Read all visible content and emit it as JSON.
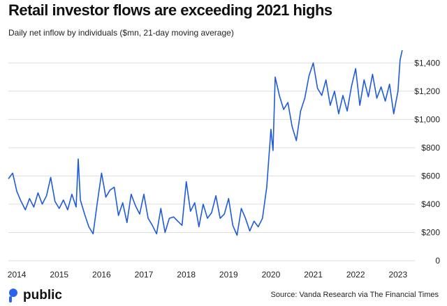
{
  "header": {
    "title": "Retail investor flows are exceeding 2021 highs",
    "subtitle": "Daily net inflow by individuals ($mn, 21-day moving average)"
  },
  "footer": {
    "logo_text": "public",
    "source": "Source: Vanda Research via The Financial Times"
  },
  "colors": {
    "line": "#1f5bd8",
    "grid": "#dddddd",
    "logo_accent": "#2b63ee"
  },
  "chart_data": {
    "type": "line",
    "title": "Retail investor flows are exceeding 2021 highs",
    "subtitle": "Daily net inflow by individuals ($mn, 21-day moving average)",
    "xlabel": "",
    "ylabel": "",
    "x_ticks": [
      "2014",
      "2015",
      "2016",
      "2017",
      "2018",
      "2019",
      "2020",
      "2021",
      "2022",
      "2023"
    ],
    "y_ticks": [
      {
        "value": 0,
        "label": "0"
      },
      {
        "value": 200,
        "label": "$200"
      },
      {
        "value": 400,
        "label": "$400"
      },
      {
        "value": 600,
        "label": "$600"
      },
      {
        "value": 800,
        "label": "$800"
      },
      {
        "value": 1000,
        "label": "$1,000"
      },
      {
        "value": 1200,
        "label": "$1,200"
      },
      {
        "value": 1400,
        "label": "$1,400"
      }
    ],
    "xlim": [
      2013.8,
      2023.3
    ],
    "ylim": [
      0,
      1500
    ],
    "y_axis_position": "right",
    "grid": "horizontal",
    "legend": "none",
    "series": [
      {
        "values": [
          [
            2013.8,
            580
          ],
          [
            2013.9,
            620
          ],
          [
            2014.0,
            490
          ],
          [
            2014.1,
            420
          ],
          [
            2014.2,
            360
          ],
          [
            2014.3,
            440
          ],
          [
            2014.4,
            380
          ],
          [
            2014.5,
            480
          ],
          [
            2014.6,
            400
          ],
          [
            2014.7,
            460
          ],
          [
            2014.8,
            590
          ],
          [
            2014.9,
            420
          ],
          [
            2015.0,
            370
          ],
          [
            2015.1,
            430
          ],
          [
            2015.2,
            360
          ],
          [
            2015.3,
            470
          ],
          [
            2015.4,
            380
          ],
          [
            2015.45,
            720
          ],
          [
            2015.5,
            430
          ],
          [
            2015.6,
            330
          ],
          [
            2015.7,
            240
          ],
          [
            2015.8,
            190
          ],
          [
            2015.9,
            410
          ],
          [
            2016.0,
            620
          ],
          [
            2016.1,
            450
          ],
          [
            2016.2,
            500
          ],
          [
            2016.3,
            520
          ],
          [
            2016.4,
            320
          ],
          [
            2016.5,
            410
          ],
          [
            2016.6,
            270
          ],
          [
            2016.7,
            470
          ],
          [
            2016.8,
            390
          ],
          [
            2016.9,
            330
          ],
          [
            2017.0,
            470
          ],
          [
            2017.1,
            300
          ],
          [
            2017.2,
            250
          ],
          [
            2017.3,
            190
          ],
          [
            2017.4,
            370
          ],
          [
            2017.5,
            200
          ],
          [
            2017.6,
            300
          ],
          [
            2017.7,
            310
          ],
          [
            2017.8,
            280
          ],
          [
            2017.9,
            250
          ],
          [
            2018.0,
            560
          ],
          [
            2018.1,
            350
          ],
          [
            2018.2,
            410
          ],
          [
            2018.3,
            240
          ],
          [
            2018.4,
            400
          ],
          [
            2018.5,
            300
          ],
          [
            2018.6,
            340
          ],
          [
            2018.7,
            460
          ],
          [
            2018.8,
            300
          ],
          [
            2018.9,
            330
          ],
          [
            2019.0,
            440
          ],
          [
            2019.1,
            250
          ],
          [
            2019.2,
            180
          ],
          [
            2019.3,
            370
          ],
          [
            2019.4,
            300
          ],
          [
            2019.5,
            210
          ],
          [
            2019.6,
            280
          ],
          [
            2019.7,
            240
          ],
          [
            2019.8,
            300
          ],
          [
            2019.9,
            520
          ],
          [
            2020.0,
            930
          ],
          [
            2020.05,
            780
          ],
          [
            2020.1,
            1300
          ],
          [
            2020.2,
            1170
          ],
          [
            2020.3,
            1070
          ],
          [
            2020.4,
            1120
          ],
          [
            2020.5,
            950
          ],
          [
            2020.6,
            850
          ],
          [
            2020.7,
            1060
          ],
          [
            2020.8,
            1150
          ],
          [
            2020.9,
            1310
          ],
          [
            2021.0,
            1400
          ],
          [
            2021.1,
            1220
          ],
          [
            2021.2,
            1170
          ],
          [
            2021.3,
            1280
          ],
          [
            2021.4,
            1100
          ],
          [
            2021.5,
            1200
          ],
          [
            2021.6,
            1040
          ],
          [
            2021.7,
            1170
          ],
          [
            2021.8,
            1060
          ],
          [
            2021.9,
            1230
          ],
          [
            2022.0,
            1360
          ],
          [
            2022.1,
            1100
          ],
          [
            2022.2,
            1280
          ],
          [
            2022.3,
            1160
          ],
          [
            2022.4,
            1320
          ],
          [
            2022.5,
            1150
          ],
          [
            2022.6,
            1230
          ],
          [
            2022.7,
            1130
          ],
          [
            2022.8,
            1250
          ],
          [
            2022.9,
            1040
          ],
          [
            2023.0,
            1200
          ],
          [
            2023.05,
            1420
          ],
          [
            2023.1,
            1490
          ]
        ]
      }
    ]
  }
}
